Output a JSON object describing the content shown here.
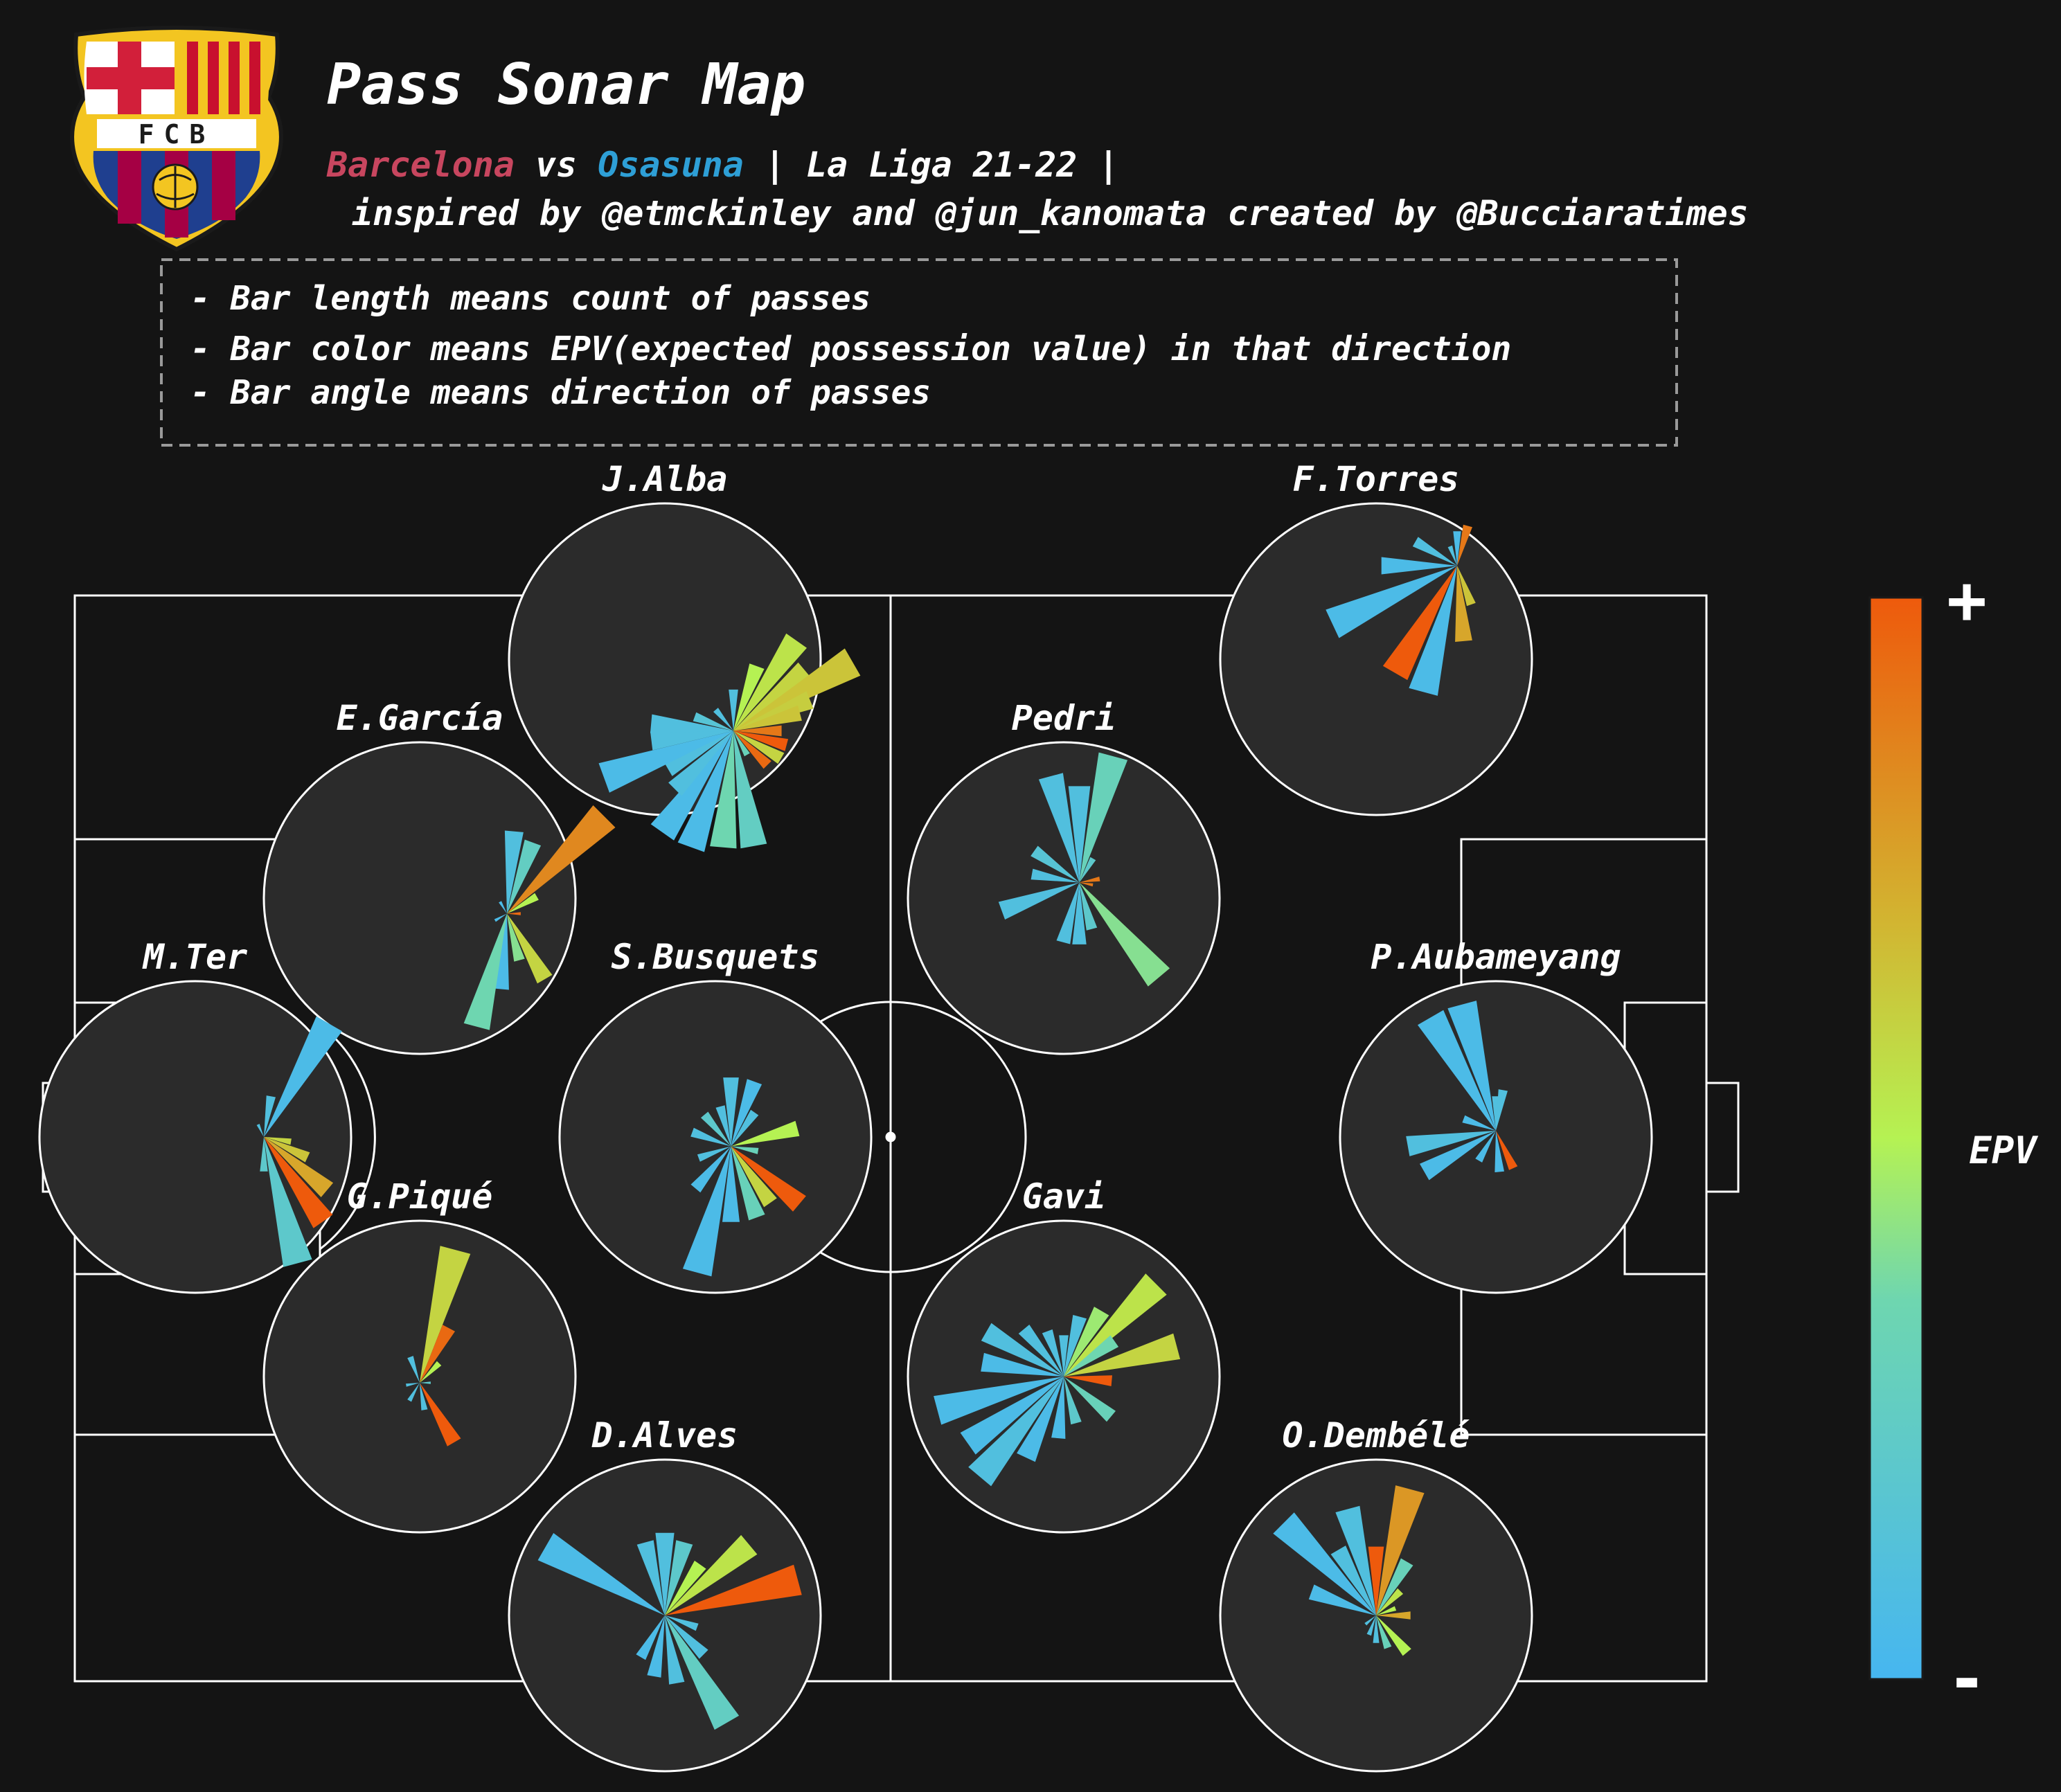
{
  "header": {
    "title": "Pass Sonar Map",
    "team_home": "Barcelona",
    "vs_word": "vs",
    "team_away": "Osasuna",
    "competition": "| La Liga 21-22 |",
    "credits": "inspired by @etmckinley and @jun_kanomata created by @Bucciaratimes"
  },
  "crest": {
    "text": "FCB",
    "icon": "fc-barcelona-crest-icon"
  },
  "legend_box": {
    "lines": [
      "- Bar length means count of passes",
      "- Bar color means EPV(expected possession value) in that direction",
      "- Bar angle means direction of passes"
    ]
  },
  "colors": {
    "background": "#141414",
    "sonar_fill": "#2b2b2b",
    "pitch_lines": "#ffffff",
    "home": "#c8465f",
    "away": "#2e9fd6",
    "epv_low": "#46b6f0",
    "epv_high": "#ee5a0c"
  },
  "chart_data": {
    "type": "polar-bar",
    "axes": "direction (degrees clockwise from up) × pass count; EPV on colour scale 0-1",
    "colorbar": {
      "label": "EPV",
      "max_label": "+",
      "min_label": "-"
    },
    "players": [
      {
        "name": "J.Alba",
        "center": [
          72,
          73
        ],
        "bars": [
          {
            "a": 0,
            "c": 0.3,
            "e": 0.1
          },
          {
            "a": 20,
            "c": 0.5,
            "e": 0.5
          },
          {
            "a": 35,
            "c": 0.8,
            "e": 0.55
          },
          {
            "a": 50,
            "c": 0.68,
            "e": 0.6
          },
          {
            "a": 60,
            "c": 1.0,
            "e": 0.65
          },
          {
            "a": 68,
            "c": 0.6,
            "e": 0.62
          },
          {
            "a": 75,
            "c": 0.5,
            "e": 0.65
          },
          {
            "a": 90,
            "c": 0.35,
            "e": 0.9
          },
          {
            "a": 105,
            "c": 0.4,
            "e": 1.0
          },
          {
            "a": 120,
            "c": 0.4,
            "e": 0.6
          },
          {
            "a": 135,
            "c": 0.35,
            "e": 0.95
          },
          {
            "a": 150,
            "c": 0.2,
            "e": 0.3
          },
          {
            "a": 170,
            "c": 0.85,
            "e": 0.25
          },
          {
            "a": 185,
            "c": 0.85,
            "e": 0.35
          },
          {
            "a": 200,
            "c": 0.9,
            "e": 0.05
          },
          {
            "a": 215,
            "c": 0.9,
            "e": 0.05
          },
          {
            "a": 225,
            "c": 0.6,
            "e": 0.1
          },
          {
            "a": 240,
            "c": 0.55,
            "e": 0.1
          },
          {
            "a": 250,
            "c": 1.0,
            "e": 0.05
          },
          {
            "a": 263,
            "c": 0.6,
            "e": 0.1
          },
          {
            "a": 275,
            "c": 0.6,
            "e": 0.1
          },
          {
            "a": 290,
            "c": 0.3,
            "e": 0.15
          },
          {
            "a": 320,
            "c": 0.2,
            "e": 0.1
          }
        ]
      },
      {
        "name": "F.Torres",
        "center": [
          76,
          20
        ],
        "bars": [
          {
            "a": 0,
            "c": 0.25,
            "e": 0.05
          },
          {
            "a": 15,
            "c": 0.3,
            "e": 0.9
          },
          {
            "a": 160,
            "c": 0.3,
            "e": 0.65
          },
          {
            "a": 175,
            "c": 0.55,
            "e": 0.75
          },
          {
            "a": 195,
            "c": 0.95,
            "e": 0.05
          },
          {
            "a": 210,
            "c": 0.9,
            "e": 1.0
          },
          {
            "a": 245,
            "c": 1.0,
            "e": 0.05
          },
          {
            "a": 270,
            "c": 0.55,
            "e": 0.05
          },
          {
            "a": 300,
            "c": 0.35,
            "e": 0.1
          },
          {
            "a": 340,
            "c": 0.15,
            "e": 0.1
          }
        ]
      },
      {
        "name": "E.García",
        "center": [
          78,
          55
        ],
        "bars": [
          {
            "a": 5,
            "c": 0.6,
            "e": 0.1
          },
          {
            "a": 20,
            "c": 0.55,
            "e": 0.25
          },
          {
            "a": 45,
            "c": 1.0,
            "e": 0.85
          },
          {
            "a": 60,
            "c": 0.25,
            "e": 0.5
          },
          {
            "a": 90,
            "c": 0.1,
            "e": 0.95
          },
          {
            "a": 150,
            "c": 0.55,
            "e": 0.6
          },
          {
            "a": 165,
            "c": 0.35,
            "e": 0.4
          },
          {
            "a": 185,
            "c": 0.55,
            "e": 0.05
          },
          {
            "a": 195,
            "c": 0.85,
            "e": 0.35
          },
          {
            "a": 240,
            "c": 0.1,
            "e": 0.05
          },
          {
            "a": 330,
            "c": 0.1,
            "e": 0.05
          }
        ]
      },
      {
        "name": "Pedri",
        "center": [
          55,
          45
        ],
        "bars": [
          {
            "a": 0,
            "c": 0.7,
            "e": 0.1
          },
          {
            "a": 15,
            "c": 0.95,
            "e": 0.3
          },
          {
            "a": 30,
            "c": 0.2,
            "e": 0.2
          },
          {
            "a": 80,
            "c": 0.15,
            "e": 0.9
          },
          {
            "a": 100,
            "c": 0.1,
            "e": 0.9
          },
          {
            "a": 140,
            "c": 0.9,
            "e": 0.4
          },
          {
            "a": 165,
            "c": 0.35,
            "e": 0.2
          },
          {
            "a": 180,
            "c": 0.45,
            "e": 0.1
          },
          {
            "a": 195,
            "c": 0.45,
            "e": 0.1
          },
          {
            "a": 250,
            "c": 0.6,
            "e": 0.1
          },
          {
            "a": 280,
            "c": 0.35,
            "e": 0.1
          },
          {
            "a": 305,
            "c": 0.4,
            "e": 0.15
          },
          {
            "a": 345,
            "c": 0.8,
            "e": 0.1
          }
        ]
      },
      {
        "name": "M.Ter",
        "center": [
          72,
          50
        ],
        "bars": [
          {
            "a": 10,
            "c": 0.3,
            "e": 0.1
          },
          {
            "a": 30,
            "c": 0.95,
            "e": 0.05
          },
          {
            "a": 100,
            "c": 0.2,
            "e": 0.6
          },
          {
            "a": 115,
            "c": 0.35,
            "e": 0.65
          },
          {
            "a": 130,
            "c": 0.6,
            "e": 0.75
          },
          {
            "a": 145,
            "c": 0.75,
            "e": 1.0
          },
          {
            "a": 165,
            "c": 0.95,
            "e": 0.2
          },
          {
            "a": 180,
            "c": 0.25,
            "e": 0.2
          },
          {
            "a": 335,
            "c": 0.1,
            "e": 0.1
          }
        ]
      },
      {
        "name": "S.Busquets",
        "center": [
          55,
          53
        ],
        "bars": [
          {
            "a": 0,
            "c": 0.5,
            "e": 0.1
          },
          {
            "a": 20,
            "c": 0.5,
            "e": 0.05
          },
          {
            "a": 35,
            "c": 0.3,
            "e": 0.1
          },
          {
            "a": 75,
            "c": 0.5,
            "e": 0.5
          },
          {
            "a": 100,
            "c": 0.2,
            "e": 0.3
          },
          {
            "a": 130,
            "c": 0.65,
            "e": 1.0
          },
          {
            "a": 145,
            "c": 0.5,
            "e": 0.6
          },
          {
            "a": 160,
            "c": 0.55,
            "e": 0.3
          },
          {
            "a": 180,
            "c": 0.55,
            "e": 0.05
          },
          {
            "a": 195,
            "c": 0.95,
            "e": 0.05
          },
          {
            "a": 220,
            "c": 0.4,
            "e": 0.05
          },
          {
            "a": 250,
            "c": 0.25,
            "e": 0.1
          },
          {
            "a": 290,
            "c": 0.3,
            "e": 0.1
          },
          {
            "a": 320,
            "c": 0.3,
            "e": 0.2
          },
          {
            "a": 345,
            "c": 0.3,
            "e": 0.1
          }
        ]
      },
      {
        "name": "P.Aubameyang",
        "center": [
          50,
          48
        ],
        "bars": [
          {
            "a": 0,
            "c": 0.25,
            "e": 0.1
          },
          {
            "a": 10,
            "c": 0.3,
            "e": 0.1
          },
          {
            "a": 155,
            "c": 0.3,
            "e": 1.0
          },
          {
            "a": 175,
            "c": 0.3,
            "e": 0.05
          },
          {
            "a": 210,
            "c": 0.25,
            "e": 0.05
          },
          {
            "a": 240,
            "c": 0.6,
            "e": 0.05
          },
          {
            "a": 260,
            "c": 0.65,
            "e": 0.1
          },
          {
            "a": 290,
            "c": 0.25,
            "e": 0.05
          },
          {
            "a": 330,
            "c": 0.95,
            "e": 0.05
          },
          {
            "a": 345,
            "c": 0.95,
            "e": 0.05
          }
        ]
      },
      {
        "name": "G.Piqué",
        "center": [
          50,
          52
        ],
        "bars": [
          {
            "a": 15,
            "c": 1.0,
            "e": 0.6
          },
          {
            "a": 28,
            "c": 0.45,
            "e": 0.95
          },
          {
            "a": 45,
            "c": 0.2,
            "e": 0.5
          },
          {
            "a": 90,
            "c": 0.08,
            "e": 0.2
          },
          {
            "a": 150,
            "c": 0.5,
            "e": 1.0
          },
          {
            "a": 170,
            "c": 0.2,
            "e": 0.1
          },
          {
            "a": 210,
            "c": 0.15,
            "e": 0.1
          },
          {
            "a": 260,
            "c": 0.1,
            "e": 0.1
          },
          {
            "a": 340,
            "c": 0.2,
            "e": 0.1
          }
        ]
      },
      {
        "name": "Gavi",
        "center": [
          50,
          50
        ],
        "bars": [
          {
            "a": 0,
            "c": 0.3,
            "e": 0.1
          },
          {
            "a": 15,
            "c": 0.45,
            "e": 0.1
          },
          {
            "a": 30,
            "c": 0.55,
            "e": 0.45
          },
          {
            "a": 45,
            "c": 0.95,
            "e": 0.55
          },
          {
            "a": 55,
            "c": 0.45,
            "e": 0.35
          },
          {
            "a": 75,
            "c": 0.85,
            "e": 0.6
          },
          {
            "a": 95,
            "c": 0.35,
            "e": 1.0
          },
          {
            "a": 130,
            "c": 0.45,
            "e": 0.3
          },
          {
            "a": 165,
            "c": 0.35,
            "e": 0.2
          },
          {
            "a": 185,
            "c": 0.45,
            "e": 0.05
          },
          {
            "a": 205,
            "c": 0.65,
            "e": 0.05
          },
          {
            "a": 220,
            "c": 0.95,
            "e": 0.1
          },
          {
            "a": 235,
            "c": 0.85,
            "e": 0.05
          },
          {
            "a": 255,
            "c": 0.95,
            "e": 0.05
          },
          {
            "a": 280,
            "c": 0.6,
            "e": 0.05
          },
          {
            "a": 300,
            "c": 0.65,
            "e": 0.1
          },
          {
            "a": 320,
            "c": 0.45,
            "e": 0.1
          },
          {
            "a": 340,
            "c": 0.35,
            "e": 0.1
          }
        ]
      },
      {
        "name": "D.Alves",
        "center": [
          50,
          50
        ],
        "bars": [
          {
            "a": 0,
            "c": 0.6,
            "e": 0.1
          },
          {
            "a": 15,
            "c": 0.55,
            "e": 0.2
          },
          {
            "a": 35,
            "c": 0.45,
            "e": 0.5
          },
          {
            "a": 50,
            "c": 0.8,
            "e": 0.55
          },
          {
            "a": 75,
            "c": 1.0,
            "e": 1.0
          },
          {
            "a": 110,
            "c": 0.25,
            "e": 0.1
          },
          {
            "a": 135,
            "c": 0.4,
            "e": 0.1
          },
          {
            "a": 150,
            "c": 0.9,
            "e": 0.25
          },
          {
            "a": 170,
            "c": 0.5,
            "e": 0.1
          },
          {
            "a": 190,
            "c": 0.45,
            "e": 0.05
          },
          {
            "a": 210,
            "c": 0.35,
            "e": 0.05
          },
          {
            "a": 300,
            "c": 1.0,
            "e": 0.05
          },
          {
            "a": 345,
            "c": 0.55,
            "e": 0.1
          }
        ]
      },
      {
        "name": "O.Dembélé",
        "center": [
          50,
          50
        ],
        "bars": [
          {
            "a": 0,
            "c": 0.5,
            "e": 1.0
          },
          {
            "a": 15,
            "c": 0.95,
            "e": 0.8
          },
          {
            "a": 30,
            "c": 0.45,
            "e": 0.3
          },
          {
            "a": 45,
            "c": 0.25,
            "e": 0.55
          },
          {
            "a": 70,
            "c": 0.15,
            "e": 0.5
          },
          {
            "a": 90,
            "c": 0.25,
            "e": 0.75
          },
          {
            "a": 140,
            "c": 0.35,
            "e": 0.5
          },
          {
            "a": 160,
            "c": 0.25,
            "e": 0.3
          },
          {
            "a": 180,
            "c": 0.2,
            "e": 0.1
          },
          {
            "a": 200,
            "c": 0.15,
            "e": 0.1
          },
          {
            "a": 230,
            "c": 0.1,
            "e": 0.1
          },
          {
            "a": 290,
            "c": 0.5,
            "e": 0.05
          },
          {
            "a": 315,
            "c": 0.95,
            "e": 0.05
          },
          {
            "a": 330,
            "c": 0.55,
            "e": 0.1
          },
          {
            "a": 345,
            "c": 0.8,
            "e": 0.1
          }
        ]
      }
    ]
  }
}
